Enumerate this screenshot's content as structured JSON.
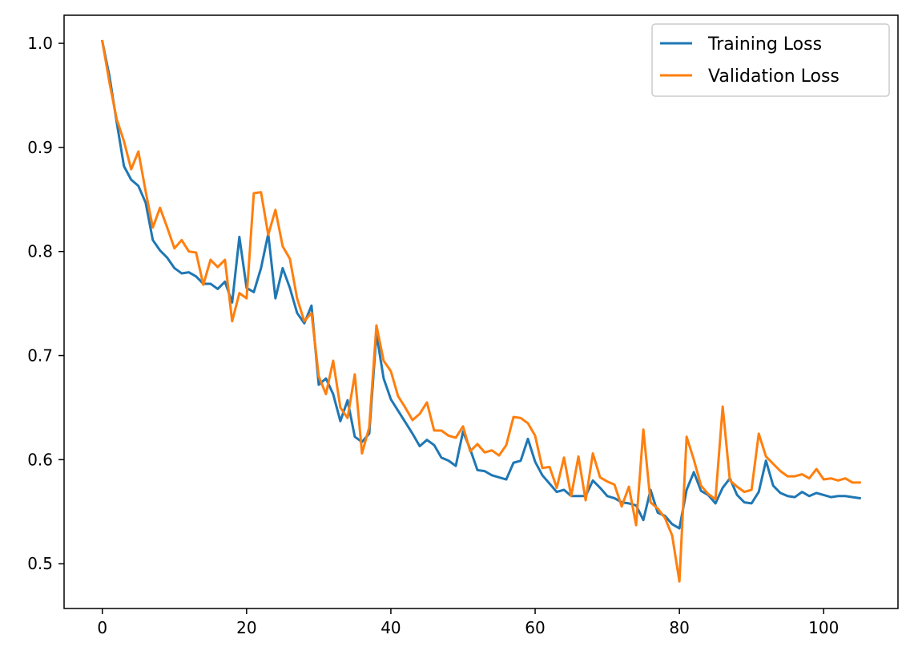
{
  "chart_data": {
    "type": "line",
    "title": "",
    "xlabel": "",
    "ylabel": "",
    "xlim": [
      -5.3,
      110.3
    ],
    "ylim": [
      0.457,
      1.027
    ],
    "xticks": [
      0,
      20,
      40,
      60,
      80,
      100
    ],
    "xtick_labels": [
      "0",
      "20",
      "40",
      "60",
      "80",
      "100"
    ],
    "yticks": [
      0.5,
      0.6,
      0.7,
      0.8,
      0.9,
      1.0
    ],
    "ytick_labels": [
      "0.5",
      "0.6",
      "0.7",
      "0.8",
      "0.9",
      "1.0"
    ],
    "grid": false,
    "legend_position": "top-right",
    "series": [
      {
        "name": "Training Loss",
        "color": "#1f77b4",
        "values": [
          1.002,
          0.968,
          0.924,
          0.882,
          0.869,
          0.863,
          0.847,
          0.811,
          0.801,
          0.794,
          0.784,
          0.779,
          0.78,
          0.776,
          0.769,
          0.769,
          0.764,
          0.771,
          0.751,
          0.814,
          0.765,
          0.761,
          0.784,
          0.817,
          0.755,
          0.784,
          0.765,
          0.741,
          0.731,
          0.748,
          0.672,
          0.678,
          0.663,
          0.637,
          0.657,
          0.622,
          0.617,
          0.625,
          0.721,
          0.678,
          0.658,
          0.647,
          0.636,
          0.625,
          0.613,
          0.619,
          0.614,
          0.602,
          0.599,
          0.594,
          0.627,
          0.61,
          0.59,
          0.589,
          0.585,
          0.583,
          0.581,
          0.597,
          0.599,
          0.62,
          0.598,
          0.585,
          0.577,
          0.569,
          0.571,
          0.565,
          0.565,
          0.565,
          0.58,
          0.573,
          0.565,
          0.563,
          0.559,
          0.558,
          0.556,
          0.542,
          0.571,
          0.549,
          0.546,
          0.538,
          0.534,
          0.571,
          0.588,
          0.57,
          0.566,
          0.558,
          0.573,
          0.582,
          0.566,
          0.559,
          0.558,
          0.569,
          0.599,
          0.575,
          0.568,
          0.565,
          0.564,
          0.569,
          0.565,
          0.568,
          0.566,
          0.564,
          0.565,
          0.565,
          0.564,
          0.563
        ]
      },
      {
        "name": "Validation Loss",
        "color": "#ff7f0e",
        "values": [
          1.002,
          0.962,
          0.927,
          0.906,
          0.879,
          0.896,
          0.858,
          0.823,
          0.842,
          0.823,
          0.803,
          0.811,
          0.8,
          0.799,
          0.768,
          0.792,
          0.785,
          0.792,
          0.733,
          0.76,
          0.755,
          0.856,
          0.857,
          0.816,
          0.84,
          0.805,
          0.793,
          0.755,
          0.733,
          0.741,
          0.68,
          0.663,
          0.695,
          0.65,
          0.64,
          0.682,
          0.606,
          0.631,
          0.729,
          0.695,
          0.685,
          0.661,
          0.65,
          0.638,
          0.644,
          0.655,
          0.628,
          0.628,
          0.623,
          0.621,
          0.632,
          0.608,
          0.615,
          0.607,
          0.609,
          0.604,
          0.614,
          0.641,
          0.64,
          0.635,
          0.623,
          0.592,
          0.593,
          0.573,
          0.602,
          0.565,
          0.603,
          0.561,
          0.606,
          0.583,
          0.579,
          0.576,
          0.555,
          0.574,
          0.537,
          0.629,
          0.559,
          0.553,
          0.544,
          0.527,
          0.483,
          0.622,
          0.6,
          0.575,
          0.567,
          0.562,
          0.651,
          0.58,
          0.574,
          0.569,
          0.571,
          0.625,
          0.603,
          0.596,
          0.589,
          0.584,
          0.584,
          0.586,
          0.582,
          0.591,
          0.581,
          0.582,
          0.58,
          0.582,
          0.578,
          0.578
        ]
      }
    ]
  }
}
